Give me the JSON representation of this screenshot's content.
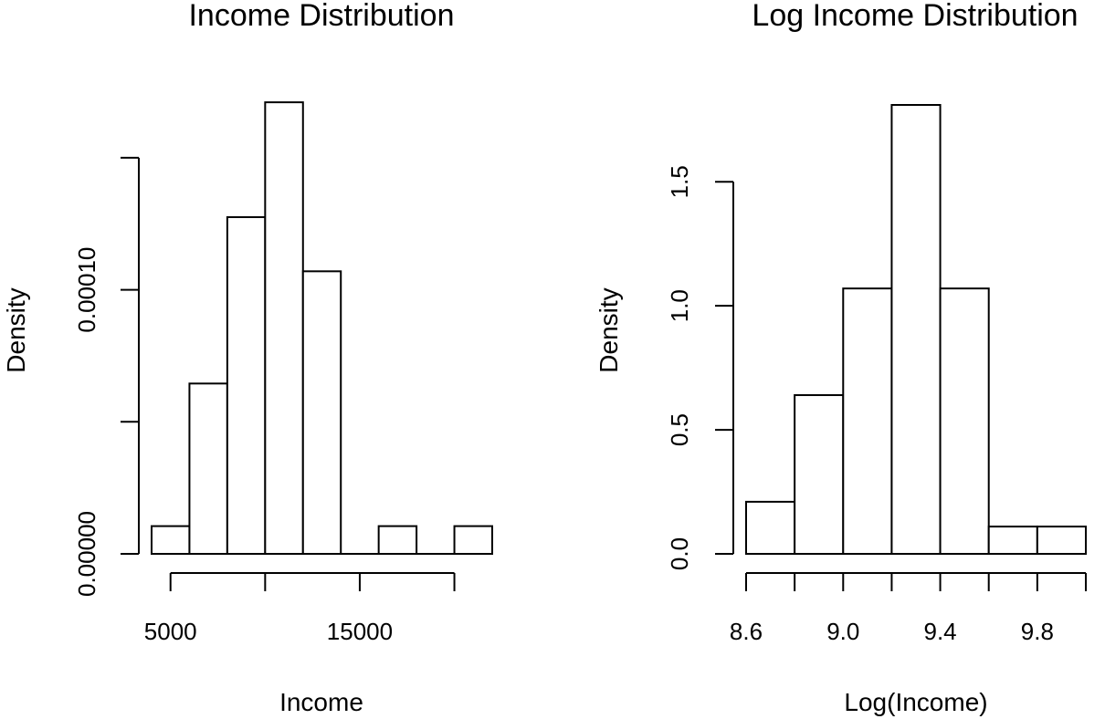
{
  "chart_data": [
    {
      "type": "bar",
      "title": "Income Distribution",
      "xlabel": "Income",
      "ylabel": "Density",
      "x_ticks": [
        5000,
        10000,
        15000,
        20000
      ],
      "x_tick_labels": [
        "5000",
        "",
        "15000",
        ""
      ],
      "y_ticks": [
        0,
        5e-05,
        0.0001,
        0.00015
      ],
      "y_tick_labels": [
        "0.00000",
        "",
        "0.00010",
        ""
      ],
      "bin_edges": [
        4000,
        6000,
        8000,
        10000,
        12000,
        14000,
        16000,
        18000,
        20000,
        22000
      ],
      "values": [
        1.05e-05,
        6.45e-05,
        0.0001275,
        0.000171,
        0.000107,
        0,
        1.05e-05,
        0,
        1.05e-05
      ],
      "xlim": [
        4000,
        22000
      ],
      "ylim": [
        0,
        0.00017
      ],
      "grid": false
    },
    {
      "type": "bar",
      "title": "Log Income Distribution",
      "xlabel": "Log(Income)",
      "ylabel": "Density",
      "x_ticks": [
        8.6,
        8.8,
        9.0,
        9.2,
        9.4,
        9.6,
        9.8,
        10.0
      ],
      "x_tick_labels": [
        "8.6",
        "",
        "9.0",
        "",
        "9.4",
        "",
        "9.8",
        ""
      ],
      "y_ticks": [
        0,
        0.5,
        1.0,
        1.5
      ],
      "y_tick_labels": [
        "0.0",
        "0.5",
        "1.0",
        "1.5"
      ],
      "bin_edges": [
        8.6,
        8.8,
        9.0,
        9.2,
        9.4,
        9.6,
        9.8,
        10.0
      ],
      "values": [
        0.21,
        0.64,
        1.07,
        1.81,
        1.07,
        0.11,
        0.11
      ],
      "xlim": [
        8.6,
        10.0
      ],
      "ylim": [
        0,
        1.81
      ],
      "grid": false
    }
  ]
}
